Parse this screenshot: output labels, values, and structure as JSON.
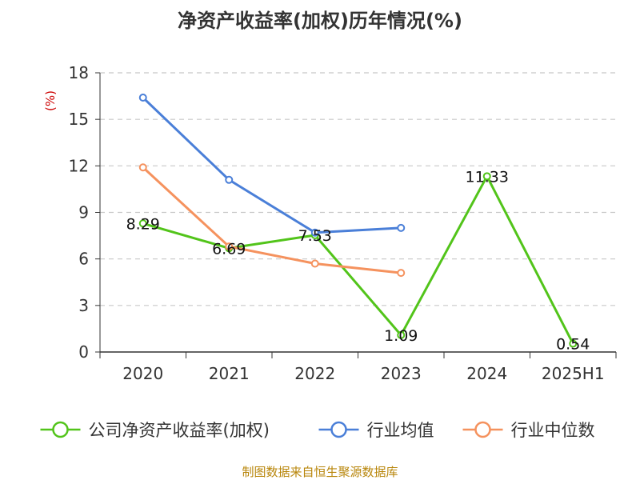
{
  "chart_data": {
    "type": "line",
    "title": "净资产收益率(加权)历年情况(%)",
    "ylabel": "(%)",
    "xlabel": "",
    "categories": [
      "2020",
      "2021",
      "2022",
      "2023",
      "2024",
      "2025H1"
    ],
    "ylim": [
      0,
      18
    ],
    "yticks": [
      0,
      3,
      6,
      9,
      12,
      15,
      18
    ],
    "grid": true,
    "legend_position": "bottom",
    "series": [
      {
        "name": "公司净资产收益率(加权)",
        "color": "#52c41a",
        "values": [
          8.29,
          6.69,
          7.53,
          1.09,
          11.33,
          0.54
        ],
        "labels": [
          "8.29",
          "6.69",
          "7.53",
          "1.09",
          "11.33",
          "0.54"
        ]
      },
      {
        "name": "行业均值",
        "color": "#4a7fd8",
        "values": [
          16.4,
          11.1,
          7.7,
          8.0,
          null,
          null
        ]
      },
      {
        "name": "行业中位数",
        "color": "#f5925e",
        "values": [
          11.9,
          6.8,
          5.7,
          5.1,
          null,
          null
        ]
      }
    ],
    "source": "制图数据来自恒生聚源数据库"
  }
}
